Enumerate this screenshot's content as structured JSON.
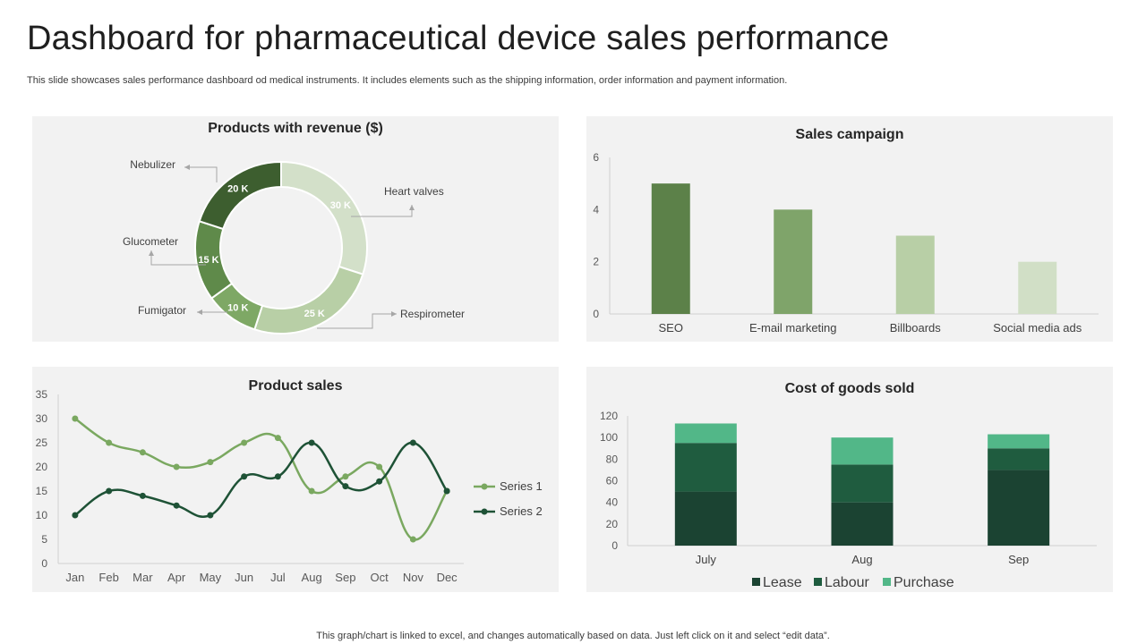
{
  "title": "Dashboard for pharmaceutical device sales performance",
  "subtitle": "This slide showcases sales performance dashboard od medical instruments. It includes elements such as the shipping information, order information and payment information.",
  "footer": "This graph/chart is linked to excel,  and changes automatically based on data. Just left click on it and select “edit data”.",
  "colors": {
    "panel_bg": "#f2f2f2",
    "green_dark": "#1b4332",
    "green_mid": "#1f5c3f",
    "green_light": "#52b788",
    "olive": "#5c8149"
  },
  "chart_data": [
    {
      "type": "pie",
      "title": "Products with revenue ($)",
      "categories": [
        "Heart valves",
        "Respirometer",
        "Fumigator",
        "Glucometer",
        "Nebulizer"
      ],
      "values": [
        30,
        25,
        10,
        15,
        20
      ],
      "labels": [
        "30 K",
        "25 K",
        "10 K",
        "15 K",
        "20 K"
      ],
      "colors": [
        "#d3e0c9",
        "#b8cfa6",
        "#7ea865",
        "#5f8a4a",
        "#3d5e2f"
      ],
      "donut": true
    },
    {
      "type": "bar",
      "title": "Sales campaign",
      "categories": [
        "SEO",
        "E-mail marketing",
        "Billboards",
        "Social media ads"
      ],
      "values": [
        5,
        4,
        3,
        2
      ],
      "colors": [
        "#5c8149",
        "#7fa46a",
        "#b8cfa6",
        "#d1dfc6"
      ],
      "ylim": [
        0,
        6
      ],
      "yticks": [
        0,
        2,
        4,
        6
      ],
      "grid": false
    },
    {
      "type": "line",
      "title": "Product sales",
      "categories": [
        "Jan",
        "Feb",
        "Mar",
        "Apr",
        "May",
        "Jun",
        "Jul",
        "Aug",
        "Sep",
        "Oct",
        "Nov",
        "Dec"
      ],
      "series": [
        {
          "name": "Series 1",
          "values": [
            30,
            25,
            23,
            20,
            21,
            25,
            26,
            15,
            18,
            20,
            5,
            15
          ],
          "color": "#7aa860"
        },
        {
          "name": "Series 2",
          "values": [
            10,
            15,
            14,
            12,
            10,
            18,
            18,
            25,
            16,
            17,
            25,
            15
          ],
          "color": "#1e5236"
        }
      ],
      "ylim": [
        0,
        35
      ],
      "yticks": [
        0,
        5,
        10,
        15,
        20,
        25,
        30,
        35
      ],
      "legend": "right",
      "smooth": true
    },
    {
      "type": "bar",
      "stacked": true,
      "title": "Cost of goods sold",
      "categories": [
        "July",
        "Aug",
        "Sep"
      ],
      "series": [
        {
          "name": "Lease",
          "values": [
            50,
            40,
            70
          ],
          "color": "#1b4332"
        },
        {
          "name": "Labour",
          "values": [
            45,
            35,
            20
          ],
          "color": "#1f5c3f"
        },
        {
          "name": "Purchase",
          "values": [
            18,
            25,
            13
          ],
          "color": "#52b788"
        }
      ],
      "ylim": [
        0,
        120
      ],
      "yticks": [
        0,
        20,
        40,
        60,
        80,
        100,
        120
      ],
      "legend": "bottom"
    }
  ]
}
